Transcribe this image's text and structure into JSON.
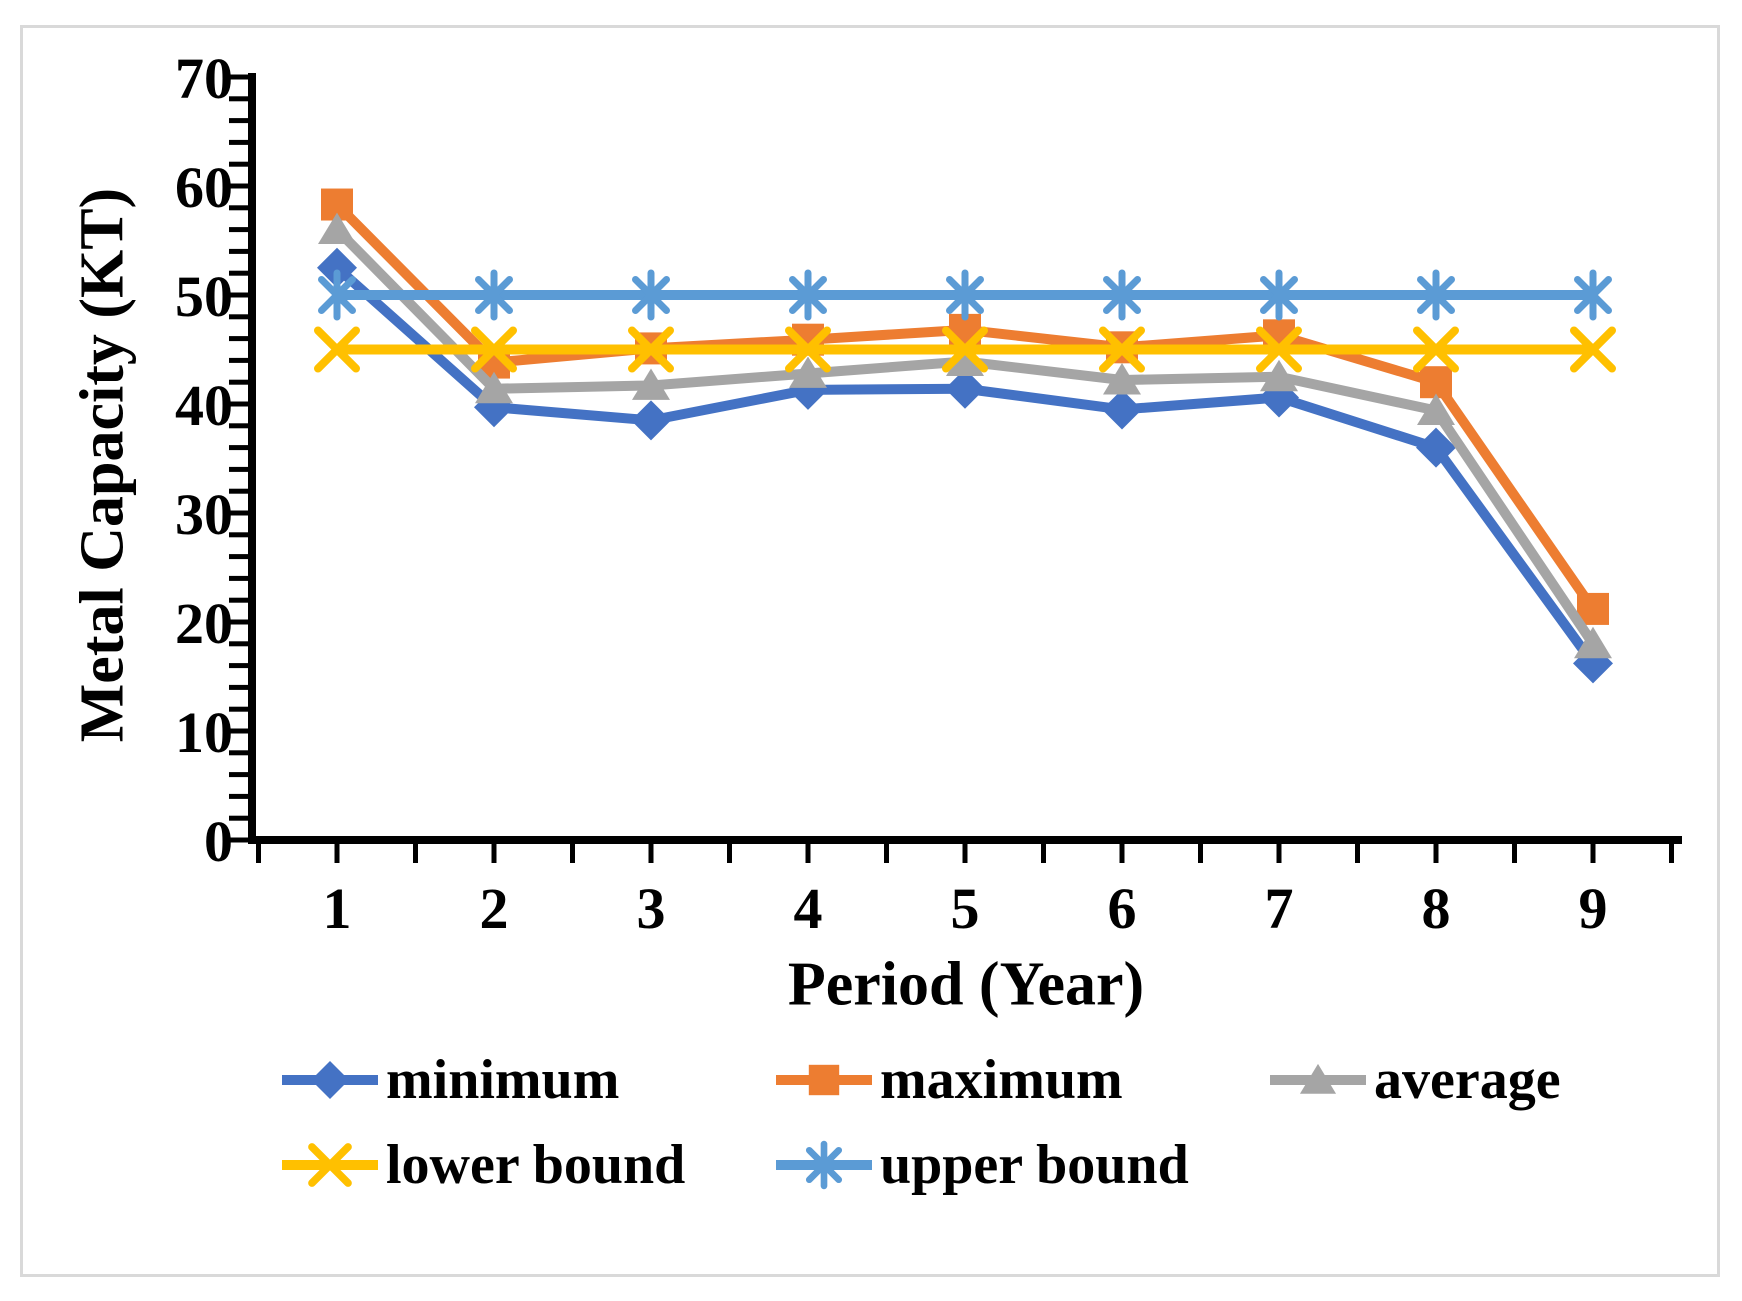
{
  "chart_data": {
    "type": "line",
    "title": "",
    "xlabel": "Period (Year)",
    "ylabel": "Metal Capacity (KT)",
    "x": [
      1,
      2,
      3,
      4,
      5,
      6,
      7,
      8,
      9
    ],
    "ylim": [
      0,
      70
    ],
    "ytick_interval": 10,
    "ytick_labels": [
      "0",
      "10",
      "20",
      "30",
      "40",
      "50",
      "60",
      "70"
    ],
    "xtick_labels": [
      "1",
      "2",
      "3",
      "4",
      "5",
      "6",
      "7",
      "8",
      "9"
    ],
    "grid": false,
    "legend_position": "bottom",
    "series": [
      {
        "name": "minimum",
        "color": "#4472C4",
        "marker": "diamond",
        "values": [
          52.5,
          39.7,
          38.5,
          41.3,
          41.4,
          39.5,
          40.6,
          36.0,
          16.2
        ]
      },
      {
        "name": "maximum",
        "color": "#ED7D31",
        "marker": "square",
        "values": [
          58.3,
          43.8,
          45.1,
          45.9,
          46.8,
          45.2,
          46.3,
          42.0,
          21.2
        ]
      },
      {
        "name": "average",
        "color": "#A5A5A5",
        "marker": "triangle",
        "values": [
          56.0,
          41.4,
          41.7,
          42.8,
          43.9,
          42.2,
          42.5,
          39.4,
          18.0
        ]
      },
      {
        "name": "lower bound",
        "color": "#FFC000",
        "marker": "x",
        "values": [
          45,
          45,
          45,
          45,
          45,
          45,
          45,
          45,
          45
        ]
      },
      {
        "name": "upper bound",
        "color": "#5B9BD5",
        "marker": "asterisk",
        "values": [
          50,
          50,
          50,
          50,
          50,
          50,
          50,
          50,
          50
        ]
      }
    ]
  },
  "frame": {
    "border_color": "#d9d9d9",
    "background": "#ffffff",
    "axis_color": "#000000"
  }
}
